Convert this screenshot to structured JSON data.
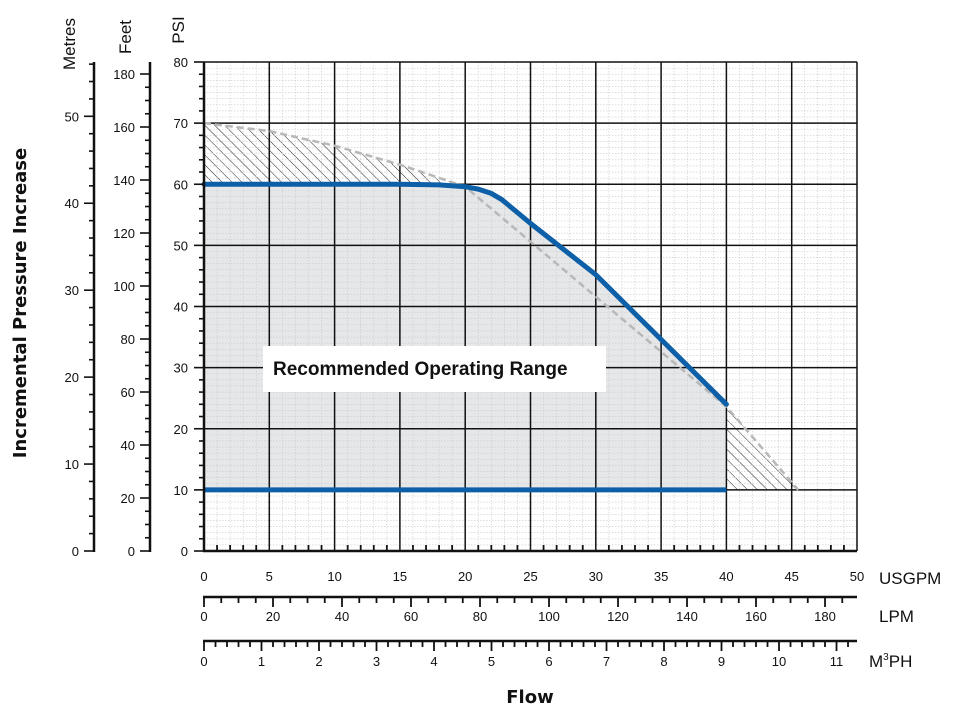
{
  "chart_data": {
    "type": "line",
    "title": "",
    "annotation": "Recommended Operating Range",
    "xlabel": "Flow",
    "ylabel": "Incremental Pressure Increase",
    "x_axes": [
      {
        "unit": "USGPM",
        "range": [
          0,
          50
        ],
        "ticks": [
          "0",
          "5",
          "10",
          "15",
          "20",
          "25",
          "30",
          "35",
          "40",
          "45",
          "50"
        ]
      },
      {
        "unit": "LPM",
        "range": [
          0,
          189.27
        ],
        "ticks": [
          "0",
          "20",
          "40",
          "60",
          "80",
          "100",
          "120",
          "140",
          "160",
          "180"
        ]
      },
      {
        "unit": "M",
        "unit_sup": "3",
        "unit_suffix": "PH",
        "range": [
          0,
          11.356
        ],
        "ticks": [
          "0",
          "1",
          "2",
          "3",
          "4",
          "5",
          "6",
          "7",
          "8",
          "9",
          "10",
          "11"
        ]
      }
    ],
    "y_axes": [
      {
        "unit": "Metres",
        "range": [
          0,
          56.24
        ],
        "ticks": [
          "0",
          "10",
          "20",
          "30",
          "40",
          "50"
        ]
      },
      {
        "unit": "Feet",
        "range": [
          0,
          184.53
        ],
        "ticks": [
          "0",
          "20",
          "40",
          "60",
          "80",
          "100",
          "120",
          "140",
          "160",
          "180"
        ]
      },
      {
        "unit": "PSI",
        "range": [
          0,
          80
        ],
        "ticks": [
          "0",
          "10",
          "20",
          "30",
          "40",
          "50",
          "60",
          "70",
          "80"
        ]
      }
    ],
    "x_unit_primary": "USGPM",
    "y_unit_primary": "PSI",
    "grid": true,
    "series": [
      {
        "values_x": [
          0,
          5,
          10,
          15,
          18,
          20,
          21,
          22,
          22.8,
          25,
          30,
          35,
          40
        ],
        "values_y": [
          60,
          60,
          60,
          60,
          59.9,
          59.6,
          59.2,
          58.5,
          57.5,
          53.6,
          45.2,
          34.6,
          24
        ]
      },
      {
        "values_x": [
          0,
          40
        ],
        "values_y": [
          10,
          10
        ]
      }
    ],
    "max_envelope": {
      "values_x": [
        0,
        5,
        10,
        15,
        20,
        40,
        45.5
      ],
      "values_y": [
        70,
        68.7,
        66.3,
        63.2,
        59.6,
        23.6,
        10
      ]
    },
    "colors": {
      "curve": "#0d5fa8",
      "range_fill": "#e6e7e9",
      "grid": "#111111",
      "envelope": "#b8b8b8"
    }
  }
}
